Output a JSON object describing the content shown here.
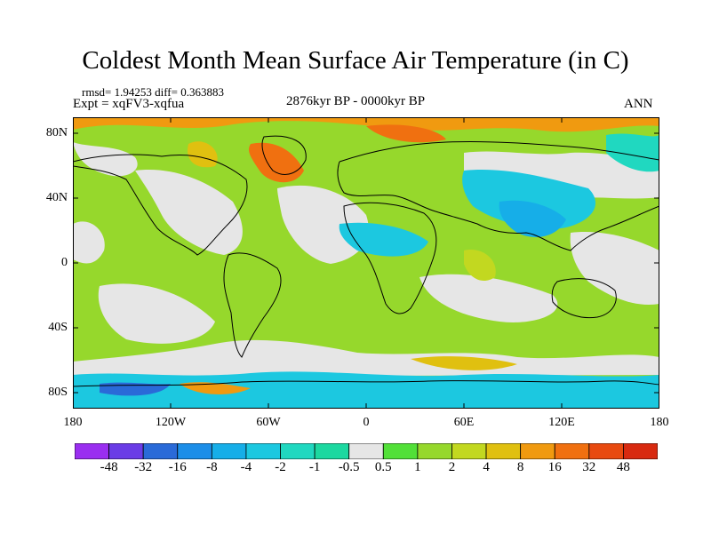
{
  "title": "Coldest Month Mean Surface Air Temperature (in C)",
  "stats": "rmsd= 1.94253 diff= 0.363883",
  "experiment": "Expt = xqFV3-xqfua",
  "period": "2876kyr BP - 0000kyr BP",
  "season": "ANN",
  "map": {
    "lat_ticks": [
      "80N",
      "40N",
      "0",
      "40S",
      "80S"
    ],
    "lon_ticks": [
      "180",
      "120W",
      "60W",
      "0",
      "60E",
      "120E",
      "180"
    ]
  },
  "colorbar": {
    "labels": [
      "-48",
      "-32",
      "-16",
      "-8",
      "-4",
      "-2",
      "-1",
      "-0.5",
      "0.5",
      "1",
      "2",
      "4",
      "8",
      "16",
      "32",
      "48"
    ],
    "colors": [
      "#9a2ef0",
      "#6a3ce6",
      "#2a6ad8",
      "#1c8ee8",
      "#16aee8",
      "#1cc8e0",
      "#20d8c0",
      "#1cd8a0",
      "#e6e6e6",
      "#52e038",
      "#96d82c",
      "#c2d820",
      "#e0c010",
      "#f09a10",
      "#f07010",
      "#e84a10",
      "#d82a10"
    ]
  }
}
